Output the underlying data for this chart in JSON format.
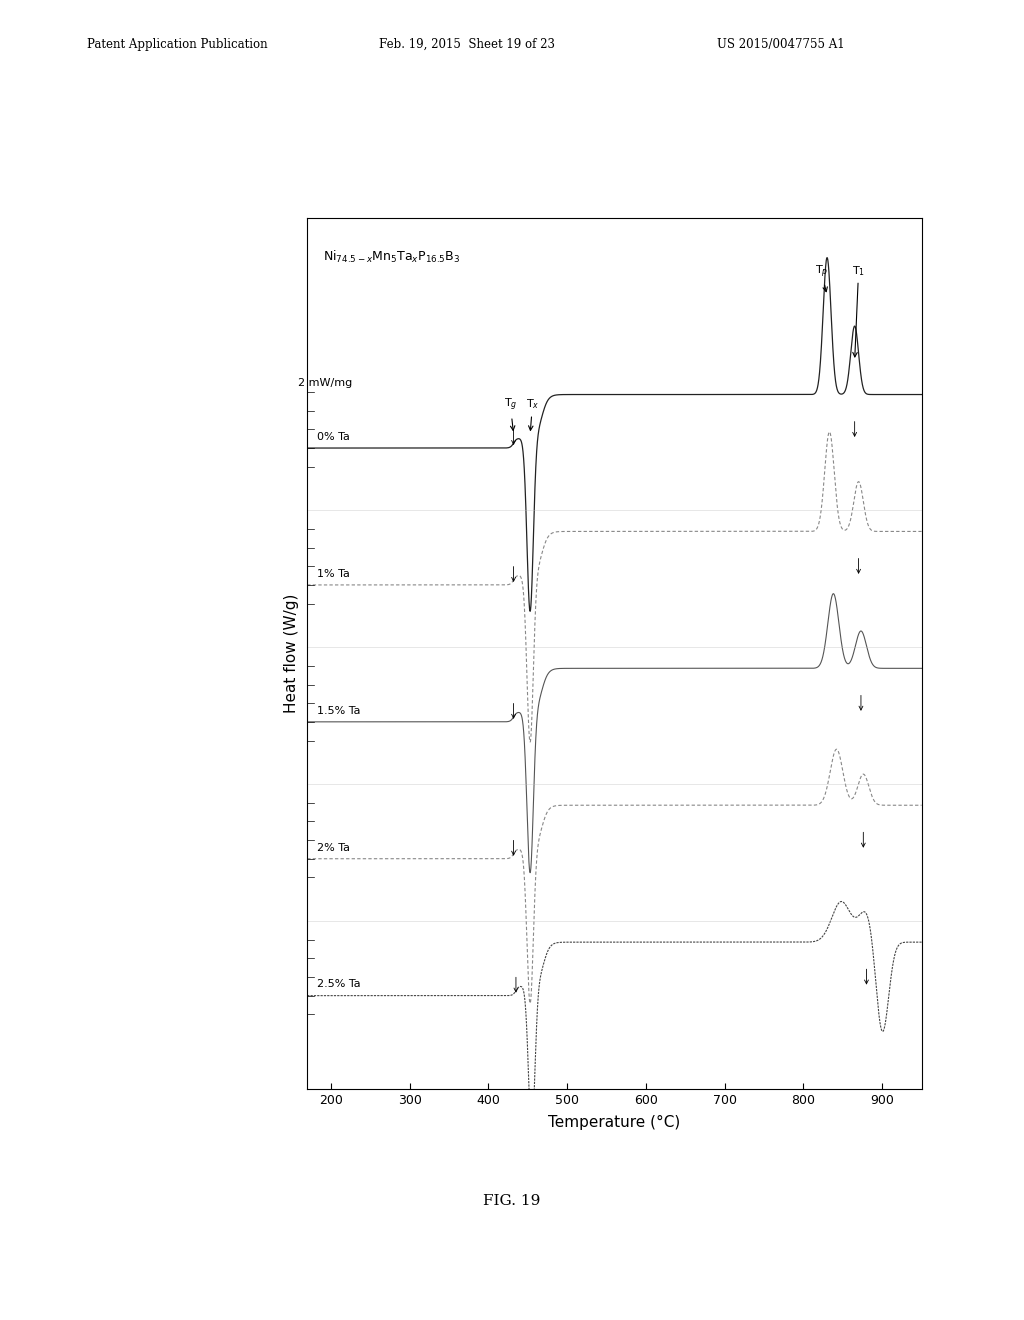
{
  "xlabel": "Temperature (°C)",
  "ylabel": "Heat flow (W/g)",
  "scale_label": "2 mW/mg",
  "x_min": 170,
  "x_max": 950,
  "x_ticks": [
    200,
    300,
    400,
    500,
    600,
    700,
    800,
    900
  ],
  "series_labels": [
    "0% Ta",
    "1% Ta",
    "1.5% Ta",
    "2% Ta",
    "2.5% Ta"
  ],
  "tg_positions": [
    432,
    432,
    432,
    432,
    435
  ],
  "tx_positions": [
    453,
    453,
    453,
    453,
    455
  ],
  "tp1_positions": [
    830,
    833,
    838,
    842,
    848
  ],
  "tp2_positions": [
    865,
    870,
    873,
    876,
    880
  ],
  "background_color": "#ffffff",
  "fig_caption": "FIG. 19",
  "patent_header_left": "Patent Application Publication",
  "patent_header_mid": "Feb. 19, 2015  Sheet 19 of 23",
  "patent_header_right": "US 2015/0047755 A1",
  "formula": "Ni$_{74.5-x}$Mn$_5$Ta$_x$P$_{16.5}$B$_3$"
}
